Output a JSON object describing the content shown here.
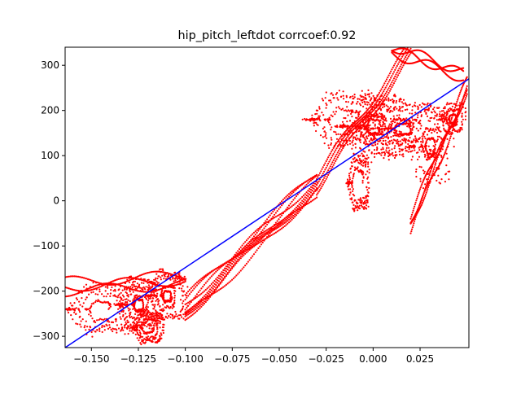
{
  "chart_data": {
    "type": "scatter",
    "title": "hip_pitch_leftdot corrcoef:0.92",
    "xlabel": "",
    "ylabel": "",
    "xlim": [
      -0.164,
      0.051
    ],
    "ylim": [
      -325,
      340
    ],
    "x_ticks": [
      -0.15,
      -0.125,
      -0.1,
      -0.075,
      -0.05,
      -0.025,
      0.0,
      0.025
    ],
    "x_tick_labels": [
      "−0.150",
      "−0.125",
      "−0.100",
      "−0.075",
      "−0.050",
      "−0.025",
      "0.000",
      "0.025"
    ],
    "y_ticks": [
      -300,
      -200,
      -100,
      0,
      100,
      200,
      300
    ],
    "y_tick_labels": [
      "−300",
      "−200",
      "−100",
      "0",
      "100",
      "200",
      "300"
    ],
    "grid": false,
    "legend": "none",
    "fit_line": {
      "color": "#0000ff",
      "points": [
        [
          -0.164,
          -325
        ],
        [
          0.051,
          270
        ]
      ]
    },
    "series": [
      {
        "color": "#ff0000",
        "marker": "dot",
        "loops": [
          {
            "cx": -0.145,
            "cy": -240,
            "rx": 0.018,
            "ry": 55,
            "turns": 4
          },
          {
            "cx": -0.125,
            "cy": -230,
            "rx": 0.012,
            "ry": 60,
            "turns": 6
          },
          {
            "cx": -0.11,
            "cy": -210,
            "rx": 0.01,
            "ry": 55,
            "turns": 5
          },
          {
            "cx": -0.12,
            "cy": -280,
            "rx": 0.008,
            "ry": 35,
            "turns": 4
          },
          {
            "cx": -0.015,
            "cy": 180,
            "rx": 0.02,
            "ry": 60,
            "turns": 4
          },
          {
            "cx": 0.0,
            "cy": 165,
            "rx": 0.018,
            "ry": 75,
            "turns": 7
          },
          {
            "cx": 0.015,
            "cy": 160,
            "rx": 0.022,
            "ry": 60,
            "turns": 6
          },
          {
            "cx": 0.03,
            "cy": 120,
            "rx": 0.012,
            "ry": 90,
            "turns": 4
          },
          {
            "cx": 0.042,
            "cy": 180,
            "rx": 0.008,
            "ry": 40,
            "turns": 3
          },
          {
            "cx": -0.008,
            "cy": 40,
            "rx": 0.006,
            "ry": 60,
            "turns": 3
          }
        ],
        "bands": [
          {
            "x": [
              -0.1,
              -0.03
            ],
            "y": [
              -240,
              40
            ],
            "width": 45,
            "strands": 9
          },
          {
            "x": [
              -0.03,
              0.02
            ],
            "y": [
              40,
              330
            ],
            "width": 30,
            "strands": 4
          },
          {
            "x": [
              0.01,
              0.048
            ],
            "y": [
              335,
              280
            ],
            "width": 15,
            "strands": 3
          },
          {
            "x": [
              -0.164,
              -0.1
            ],
            "y": [
              -190,
              -175
            ],
            "width": 20,
            "strands": 3
          },
          {
            "x": [
              0.02,
              0.05
            ],
            "y": [
              -50,
              250
            ],
            "width": 30,
            "strands": 4
          }
        ]
      }
    ]
  }
}
